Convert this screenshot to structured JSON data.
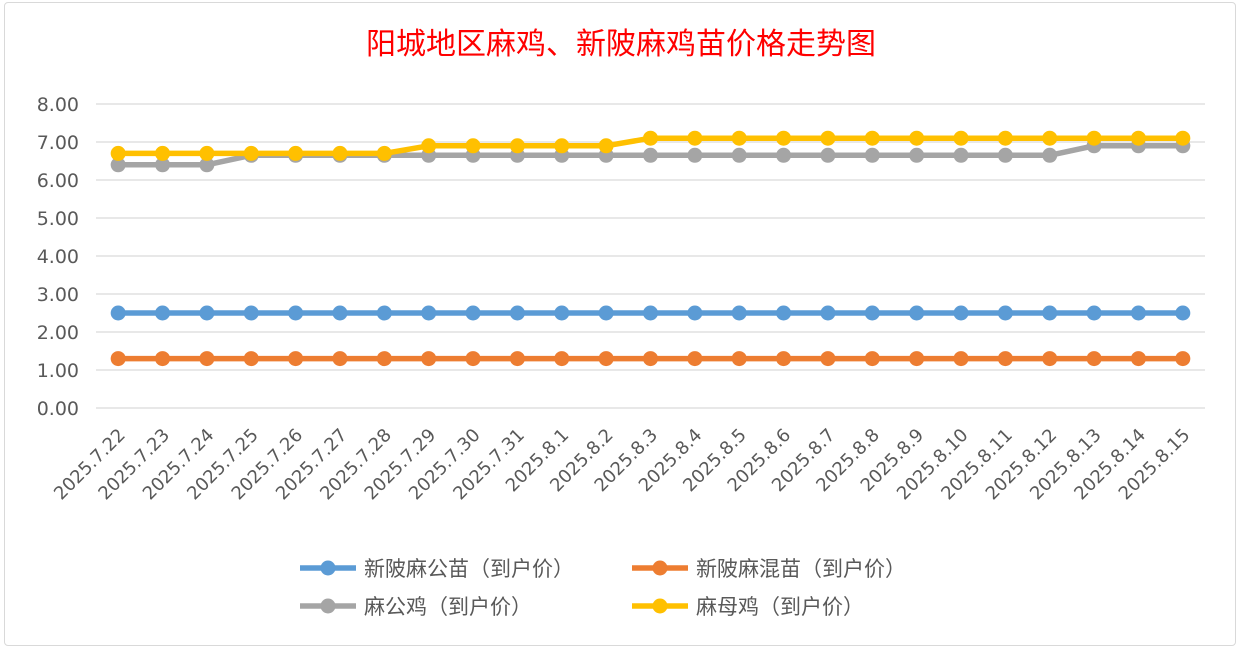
{
  "chart_data": {
    "type": "line",
    "title": "阳城地区麻鸡、新陂麻鸡苗价格走势图",
    "xlabel": "",
    "ylabel": "",
    "ylim": [
      0,
      8
    ],
    "yticks": [
      "0.00",
      "1.00",
      "2.00",
      "3.00",
      "4.00",
      "5.00",
      "6.00",
      "7.00",
      "8.00"
    ],
    "grid": true,
    "legend_position": "bottom",
    "categories": [
      "2025.7.22",
      "2025.7.23",
      "2025.7.24",
      "2025.7.25",
      "2025.7.26",
      "2025.7.27",
      "2025.7.28",
      "2025.7.29",
      "2025.7.30",
      "2025.7.31",
      "2025.8.1",
      "2025.8.2",
      "2025.8.3",
      "2025.8.4",
      "2025.8.5",
      "2025.8.6",
      "2025.8.7",
      "2025.8.8",
      "2025.8.9",
      "2025.8.10",
      "2025.8.11",
      "2025.8.12",
      "2025.8.13",
      "2025.8.14",
      "2025.8.15"
    ],
    "series": [
      {
        "name": "新陂麻公苗（到户价）",
        "color": "#5b9bd5",
        "values": [
          2.5,
          2.5,
          2.5,
          2.5,
          2.5,
          2.5,
          2.5,
          2.5,
          2.5,
          2.5,
          2.5,
          2.5,
          2.5,
          2.5,
          2.5,
          2.5,
          2.5,
          2.5,
          2.5,
          2.5,
          2.5,
          2.5,
          2.5,
          2.5,
          2.5
        ]
      },
      {
        "name": "新陂麻混苗（到户价）",
        "color": "#ed7d31",
        "values": [
          1.3,
          1.3,
          1.3,
          1.3,
          1.3,
          1.3,
          1.3,
          1.3,
          1.3,
          1.3,
          1.3,
          1.3,
          1.3,
          1.3,
          1.3,
          1.3,
          1.3,
          1.3,
          1.3,
          1.3,
          1.3,
          1.3,
          1.3,
          1.3,
          1.3
        ]
      },
      {
        "name": "麻公鸡（到户价）",
        "color": "#a5a5a5",
        "values": [
          6.4,
          6.4,
          6.4,
          6.65,
          6.65,
          6.65,
          6.65,
          6.65,
          6.65,
          6.65,
          6.65,
          6.65,
          6.65,
          6.65,
          6.65,
          6.65,
          6.65,
          6.65,
          6.65,
          6.65,
          6.65,
          6.65,
          6.9,
          6.9,
          6.9
        ]
      },
      {
        "name": "麻母鸡（到户价）",
        "color": "#ffc000",
        "values": [
          6.7,
          6.7,
          6.7,
          6.7,
          6.7,
          6.7,
          6.7,
          6.9,
          6.9,
          6.9,
          6.9,
          6.9,
          7.1,
          7.1,
          7.1,
          7.1,
          7.1,
          7.1,
          7.1,
          7.1,
          7.1,
          7.1,
          7.1,
          7.1,
          7.1
        ]
      }
    ]
  }
}
